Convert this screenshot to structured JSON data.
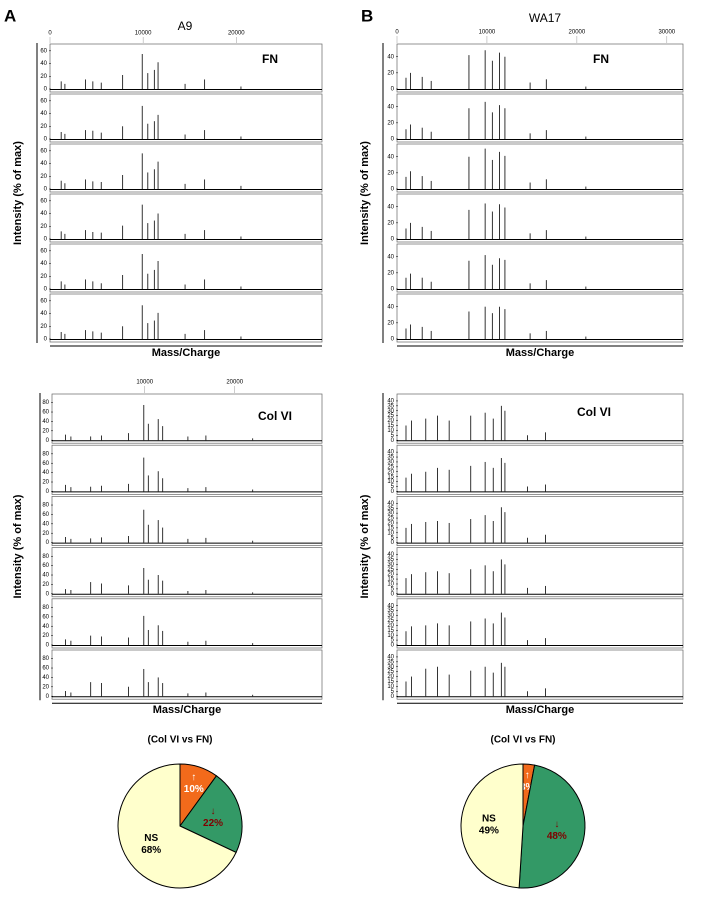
{
  "panels": [
    {
      "letter": "A",
      "title": "A9",
      "groups": [
        {
          "label": "FN",
          "xlim": [
            0,
            29200
          ],
          "xticks": [
            0,
            10000,
            20000
          ],
          "ylim": [
            0,
            66
          ],
          "yticks": [
            0,
            20,
            40,
            60
          ],
          "x": [
            1200,
            1600,
            3800,
            4600,
            5500,
            7800,
            9900,
            10500,
            11200,
            11600,
            14500,
            16600,
            20500
          ],
          "series": [
            {
              "values": [
                12,
                8,
                15,
                12,
                10,
                22,
                55,
                25,
                30,
                42,
                8,
                15,
                4
              ]
            },
            {
              "values": [
                11,
                8,
                14,
                13,
                10,
                20,
                52,
                24,
                28,
                38,
                7,
                14,
                4
              ]
            },
            {
              "values": [
                13,
                9,
                15,
                12,
                11,
                22,
                56,
                26,
                31,
                43,
                8,
                15,
                5
              ]
            },
            {
              "values": [
                12,
                8,
                14,
                11,
                10,
                21,
                54,
                25,
                29,
                40,
                8,
                14,
                4
              ]
            },
            {
              "values": [
                12,
                7,
                15,
                12,
                9,
                22,
                55,
                24,
                30,
                44,
                7,
                15,
                4
              ]
            },
            {
              "values": [
                11,
                8,
                14,
                12,
                10,
                20,
                53,
                25,
                29,
                41,
                8,
                14,
                4
              ]
            }
          ]
        },
        {
          "label": "Col VI",
          "xlim": [
            -300,
            29700
          ],
          "xticks": [
            10000,
            20000
          ],
          "ylim": [
            0,
            92
          ],
          "yticks": [
            0,
            20,
            40,
            60,
            80
          ],
          "x": [
            1200,
            1800,
            4000,
            5200,
            8200,
            9900,
            10400,
            11500,
            12000,
            14800,
            16800,
            22000
          ],
          "series": [
            {
              "values": [
                12,
                8,
                8,
                10,
                15,
                75,
                35,
                45,
                30,
                8,
                10,
                4
              ]
            },
            {
              "values": [
                14,
                9,
                10,
                12,
                16,
                72,
                34,
                43,
                28,
                7,
                9,
                4
              ]
            },
            {
              "values": [
                12,
                8,
                9,
                11,
                14,
                70,
                38,
                48,
                32,
                8,
                10,
                4
              ]
            },
            {
              "values": [
                10,
                8,
                25,
                22,
                18,
                55,
                30,
                40,
                28,
                6,
                8,
                3
              ]
            },
            {
              "values": [
                12,
                9,
                20,
                18,
                16,
                62,
                32,
                42,
                30,
                7,
                9,
                4
              ]
            },
            {
              "values": [
                11,
                8,
                30,
                28,
                20,
                58,
                30,
                40,
                28,
                6,
                8,
                3
              ]
            }
          ]
        }
      ],
      "pie": {
        "title": "(Col VI vs FN)",
        "names": [
          "↑",
          "↓",
          "NS"
        ],
        "values": [
          10,
          22,
          68
        ],
        "value_labels": [
          "10%",
          "22%",
          "68%"
        ],
        "colors": [
          "#f26a1b",
          "#339966",
          "#ffffcc"
        ],
        "label_colors": [
          "#ffffff",
          "#800000",
          "#000000"
        ]
      }
    },
    {
      "letter": "B",
      "title": "WA17",
      "groups": [
        {
          "label": "FN",
          "xlim": [
            0,
            31800
          ],
          "xticks": [
            0,
            10000,
            20000,
            30000
          ],
          "ylim": [
            0,
            52
          ],
          "yticks": [
            0,
            20,
            40
          ],
          "x": [
            1000,
            1500,
            2800,
            3800,
            8000,
            9800,
            10600,
            11400,
            12000,
            14800,
            16600,
            21000
          ],
          "series": [
            {
              "values": [
                14,
                20,
                15,
                10,
                42,
                48,
                35,
                45,
                40,
                8,
                12,
                3
              ]
            },
            {
              "values": [
                12,
                18,
                14,
                9,
                38,
                46,
                33,
                42,
                38,
                7,
                11,
                3
              ]
            },
            {
              "values": [
                15,
                22,
                16,
                10,
                40,
                50,
                36,
                46,
                41,
                8,
                12,
                3
              ]
            },
            {
              "values": [
                13,
                20,
                15,
                10,
                36,
                44,
                34,
                43,
                39,
                7,
                11,
                3
              ]
            },
            {
              "values": [
                14,
                19,
                14,
                9,
                35,
                42,
                30,
                38,
                36,
                7,
                11,
                3
              ]
            },
            {
              "values": [
                13,
                18,
                15,
                10,
                34,
                40,
                32,
                40,
                37,
                7,
                10,
                3
              ]
            }
          ]
        },
        {
          "label": "Col VI",
          "xlim": [
            0,
            31800
          ],
          "xticks": [],
          "ylim": [
            0,
            44
          ],
          "yticks": [
            0,
            5,
            10,
            15,
            20,
            25,
            30,
            35,
            40
          ],
          "x": [
            1000,
            1600,
            3200,
            4500,
            5800,
            8200,
            9800,
            10700,
            11600,
            12000,
            14500,
            16500
          ],
          "series": [
            {
              "values": [
                15,
                20,
                22,
                25,
                20,
                25,
                28,
                22,
                35,
                30,
                5,
                8
              ]
            },
            {
              "values": [
                14,
                18,
                20,
                24,
                22,
                26,
                30,
                24,
                34,
                29,
                5,
                7
              ]
            },
            {
              "values": [
                15,
                19,
                21,
                22,
                20,
                24,
                28,
                22,
                36,
                31,
                5,
                8
              ]
            },
            {
              "values": [
                16,
                20,
                22,
                23,
                21,
                25,
                29,
                23,
                35,
                30,
                6,
                8
              ]
            },
            {
              "values": [
                14,
                19,
                20,
                22,
                20,
                24,
                27,
                22,
                33,
                28,
                5,
                7
              ]
            },
            {
              "values": [
                15,
                20,
                28,
                30,
                22,
                26,
                30,
                24,
                34,
                30,
                5,
                8
              ]
            }
          ]
        }
      ],
      "pie": {
        "title": "(Col VI vs FN)",
        "names": [
          "↑",
          "↓",
          "NS"
        ],
        "values": [
          3,
          48,
          49
        ],
        "value_labels": [
          "3%",
          "48%",
          "49%"
        ],
        "colors": [
          "#f26a1b",
          "#339966",
          "#ffffcc"
        ],
        "label_colors": [
          "#ffffff",
          "#800000",
          "#000000"
        ]
      }
    }
  ],
  "axis_labels": {
    "y": "Intensity (% of max)",
    "x": "Mass/Charge"
  }
}
